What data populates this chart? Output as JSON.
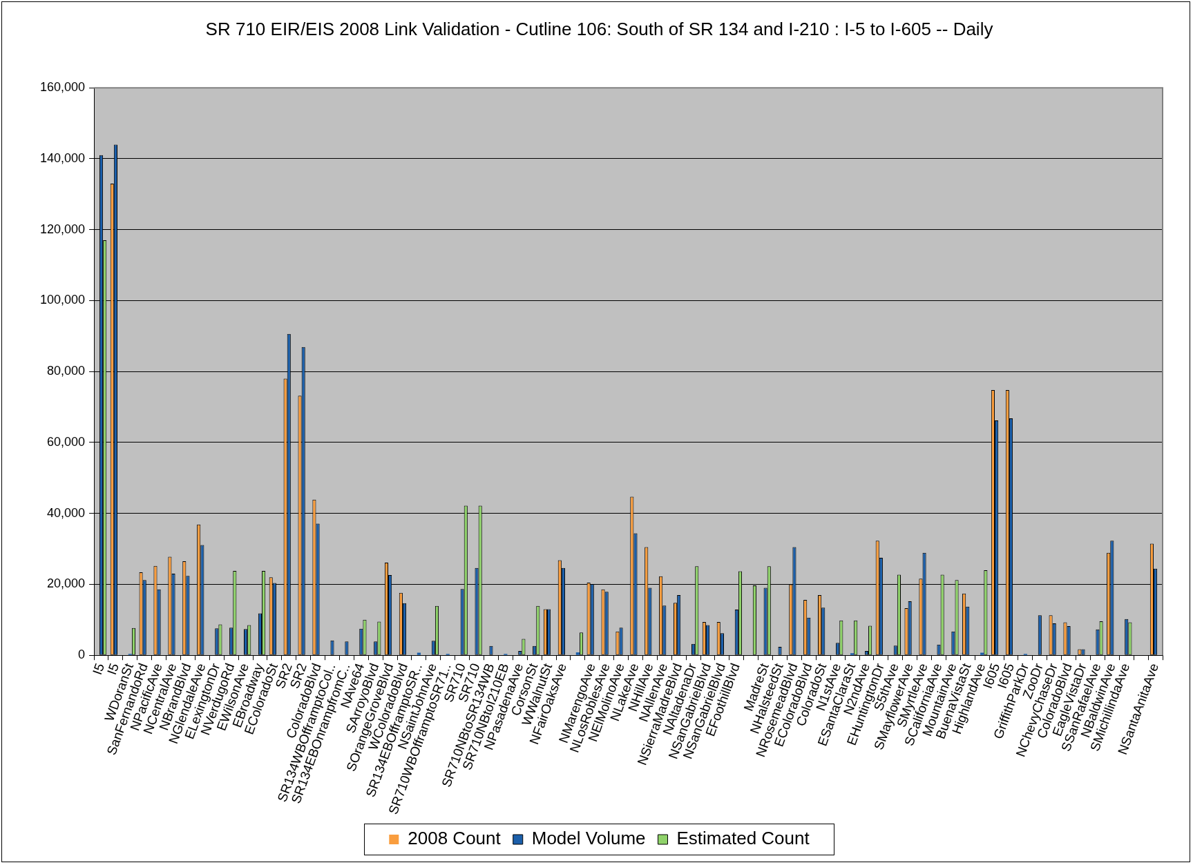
{
  "chart_data": {
    "type": "bar",
    "title": "SR 710 EIR/EIS 2008 Link Validation - Cutline 106: South of SR 134 and I-210 : I-5 to I-605 -- Daily",
    "categories": [
      "I5",
      "I5",
      "WDoranSt",
      "SanFernandoRd",
      "NPacificAve",
      "NCentralAve",
      "NBrandBlvd",
      "NGlendaleAve",
      "ELexingtonDr",
      "NVerdugoRd",
      "EWilsonAve",
      "EBroadway",
      "EColoradoSt",
      "SR2",
      "SR2",
      "ColoradoBlvd",
      "SR134WBOfframptoCol..",
      "SR134EBOnrampfromC..",
      "NAve64",
      "SArroyoBlvd",
      "SOrangeGroveBlvd",
      "WColoradoBlvd",
      "SR134EBOfframptoSR..",
      "NSaintJohnAve",
      "SR710WBOfframptoSR71..",
      "SR710",
      "SR710",
      "SR710NBtoSR134WB",
      "SR710NBtoI210EB",
      "NPasadenaAve",
      "CorsonSt",
      "WWalnutSt",
      "NFairOaksAve",
      null,
      "NMarengoAve",
      "NLosRoblesAve",
      "NElMolinoAve",
      "NLakeAve",
      "NHillAve",
      "NAllenAve",
      "NSierraMadreBlvd",
      "NAltadenaDr",
      "NSanGabrielBlvd",
      "NSanGabrielBlvd",
      "EFoothillBlvd",
      null,
      "MadreSt",
      "NHalsteedSt",
      "NRosemeadBlvd",
      "EColoradoBlvd",
      "ColoradoSt",
      "N1stAve",
      "ESantaClaraSt",
      "N2ndAve",
      "EHuntingtonDr",
      "S5thAve",
      "SMayflowerAve",
      "SMyrtleAve",
      "SCaliforniaAve",
      "MountainAve",
      "BuenaVistaSt",
      "HighlandAve",
      "I605",
      "I605",
      "GriffithParkDr",
      "ZooDr",
      "NChevyChaseDr",
      "ColoradoBlvd",
      "EagleVistaDr",
      "SSanRafaelAve",
      "NBaldwinAve",
      "SMichillindaAve",
      null,
      "NSantaAnitaAve"
    ],
    "series": [
      {
        "name": "2008 Count",
        "color": "#f99d3e",
        "values": [
          null,
          133000,
          null,
          23400,
          25200,
          27800,
          26500,
          36900,
          null,
          null,
          null,
          null,
          22000,
          78000,
          73200,
          43900,
          null,
          null,
          null,
          null,
          26100,
          17600,
          null,
          null,
          null,
          null,
          null,
          null,
          null,
          null,
          null,
          13000,
          26800,
          null,
          20500,
          18600,
          6700,
          44700,
          30500,
          22300,
          14800,
          null,
          9400,
          9400,
          null,
          null,
          null,
          null,
          20000,
          15600,
          17000,
          null,
          null,
          null,
          32300,
          null,
          13300,
          21600,
          null,
          null,
          17400,
          null,
          74800,
          74800,
          null,
          null,
          11300,
          9300,
          1700,
          null,
          28900,
          null,
          null,
          31500
        ]
      },
      {
        "name": "Model Volume",
        "color": "#1b5faa",
        "values": [
          141000,
          144000,
          400,
          21200,
          18600,
          23000,
          22400,
          31100,
          7600,
          7800,
          7400,
          11800,
          20400,
          90600,
          86900,
          37100,
          4200,
          3900,
          7500,
          3900,
          22600,
          14700,
          700,
          4100,
          400,
          18700,
          24600,
          2600,
          400,
          1200,
          2600,
          13000,
          24600,
          800,
          20100,
          17900,
          7800,
          34400,
          19000,
          14000,
          17000,
          3200,
          8500,
          6200,
          12900,
          null,
          19000,
          2400,
          30500,
          10600,
          13400,
          3500,
          600,
          1200,
          27500,
          2700,
          15200,
          28900,
          3000,
          6700,
          13700,
          700,
          66200,
          66800,
          400,
          11300,
          9000,
          8200,
          1700,
          7300,
          32300,
          10200,
          null,
          24400
        ]
      },
      {
        "name": "Estimated Count",
        "color": "#8fd26a",
        "values": [
          117000,
          null,
          7700,
          null,
          null,
          null,
          null,
          null,
          8700,
          23800,
          8500,
          23800,
          null,
          null,
          null,
          null,
          null,
          null,
          10000,
          9500,
          null,
          null,
          null,
          13900,
          null,
          42200,
          42200,
          null,
          null,
          4600,
          13900,
          null,
          null,
          6400,
          null,
          null,
          null,
          null,
          null,
          null,
          null,
          25100,
          null,
          null,
          23700,
          19700,
          25100,
          null,
          null,
          null,
          null,
          9800,
          9800,
          8300,
          null,
          22700,
          null,
          null,
          22700,
          21200,
          null,
          24000,
          null,
          null,
          null,
          null,
          null,
          null,
          null,
          9600,
          null,
          9300,
          null,
          null
        ]
      }
    ],
    "ylim": [
      0,
      160000
    ],
    "yticks": [
      0,
      {
        "value": 20000,
        "label": "20,000"
      },
      {
        "value": 40000,
        "label": "40,000"
      },
      {
        "value": 60000,
        "label": "60,000"
      },
      {
        "value": 80000,
        "label": "80,000"
      },
      {
        "value": 100000,
        "label": "100,000"
      },
      {
        "value": 120000,
        "label": "120,000"
      },
      {
        "value": 140000,
        "label": "140,000"
      },
      {
        "value": 160000,
        "label": "160,000"
      }
    ],
    "grid": "y",
    "legend": "bottom"
  }
}
